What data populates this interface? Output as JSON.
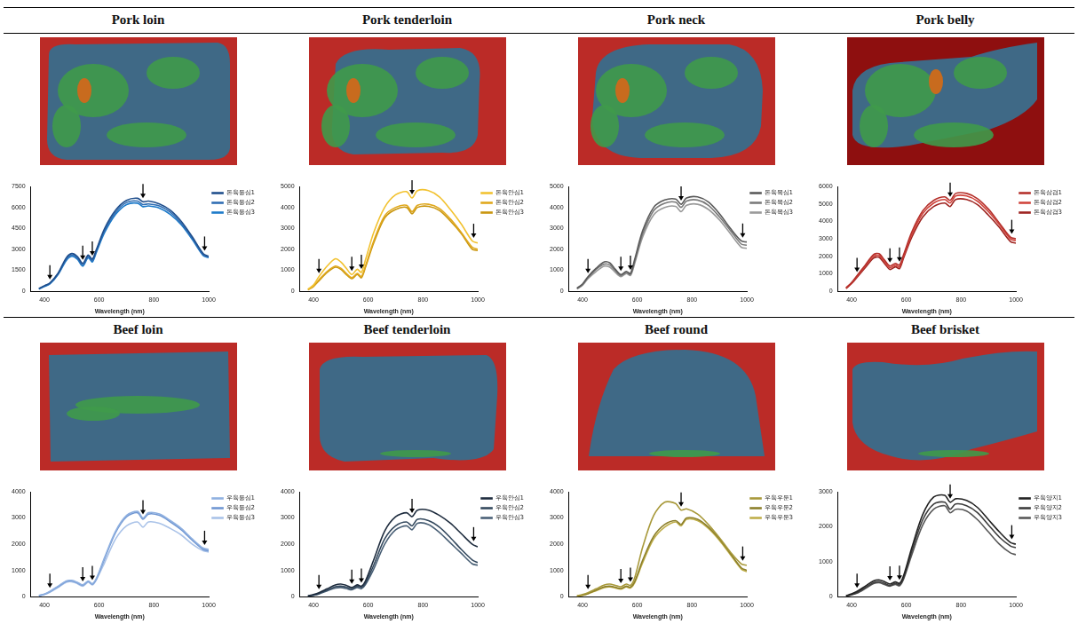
{
  "chart_data": [
    {
      "type": "line",
      "title": "Pork loin",
      "x_label": "Wavelength (nm)",
      "xlim": [
        350,
        1000
      ],
      "xticks": [
        400,
        600,
        800,
        1000
      ],
      "ylim": [
        0,
        7500
      ],
      "yticks": [
        0,
        1500,
        3000,
        4500,
        6000,
        7500
      ],
      "grid": false,
      "legend": "right",
      "arrows_nm": [
        420,
        540,
        575,
        760,
        985
      ],
      "x": [
        380,
        400,
        420,
        450,
        480,
        500,
        520,
        540,
        560,
        575,
        590,
        620,
        660,
        700,
        740,
        760,
        780,
        820,
        860,
        900,
        940,
        980,
        1000
      ],
      "series": [
        {
          "name": "돈육등심1",
          "color": "#1f4e8c",
          "values": [
            200,
            400,
            600,
            1300,
            2400,
            2700,
            2500,
            2000,
            2600,
            2300,
            3000,
            4500,
            5800,
            6500,
            6650,
            6400,
            6450,
            6250,
            5800,
            5000,
            3900,
            2700,
            2500
          ]
        },
        {
          "name": "돈육등심2",
          "color": "#2f6db3",
          "values": [
            180,
            380,
            560,
            1250,
            2300,
            2600,
            2400,
            1900,
            2500,
            2200,
            2900,
            4350,
            5650,
            6350,
            6450,
            6200,
            6250,
            6100,
            5650,
            4850,
            3800,
            2600,
            2450
          ]
        },
        {
          "name": "돈육등심3",
          "color": "#1c7ac9",
          "values": [
            160,
            350,
            520,
            1200,
            2200,
            2500,
            2300,
            1800,
            2400,
            2100,
            2800,
            4200,
            5500,
            6200,
            6300,
            6050,
            6100,
            5950,
            5500,
            4750,
            3700,
            2550,
            2400
          ]
        }
      ]
    },
    {
      "type": "line",
      "title": "Pork tenderloin",
      "x_label": "Wavelength (nm)",
      "xlim": [
        350,
        1000
      ],
      "xticks": [
        400,
        600,
        800,
        1000
      ],
      "ylim": [
        0,
        5000
      ],
      "yticks": [
        0,
        1000,
        2000,
        3000,
        4000,
        5000
      ],
      "grid": false,
      "legend": "right",
      "arrows_nm": [
        420,
        540,
        575,
        760,
        985
      ],
      "x": [
        380,
        400,
        420,
        450,
        480,
        500,
        520,
        540,
        560,
        575,
        590,
        620,
        660,
        700,
        740,
        760,
        780,
        820,
        860,
        900,
        940,
        980,
        1000
      ],
      "series": [
        {
          "name": "돈육안심1",
          "color": "#f2c230",
          "values": [
            100,
            300,
            700,
            1200,
            1550,
            1400,
            1100,
            800,
            1050,
            900,
            1500,
            2800,
            4000,
            4600,
            4750,
            4450,
            4800,
            4800,
            4500,
            3900,
            3200,
            2400,
            2300
          ]
        },
        {
          "name": "돈육안심2",
          "color": "#e0a81c",
          "values": [
            80,
            250,
            550,
            950,
            1200,
            1100,
            850,
            650,
            850,
            700,
            1200,
            2400,
            3600,
            4000,
            4100,
            3800,
            4100,
            4150,
            3950,
            3450,
            2800,
            2100,
            2000
          ]
        },
        {
          "name": "돈육안심3",
          "color": "#c9960f",
          "values": [
            70,
            230,
            500,
            900,
            1150,
            1050,
            800,
            600,
            800,
            650,
            1150,
            2300,
            3500,
            3900,
            4000,
            3700,
            4000,
            4050,
            3850,
            3350,
            2750,
            2000,
            1950
          ]
        }
      ]
    },
    {
      "type": "line",
      "title": "Pork neck",
      "x_label": "Wavelength (nm)",
      "xlim": [
        350,
        1000
      ],
      "xticks": [
        400,
        600,
        800,
        1000
      ],
      "ylim": [
        0,
        5000
      ],
      "yticks": [
        0,
        1000,
        2000,
        3000,
        4000,
        5000
      ],
      "grid": false,
      "legend": "right",
      "arrows_nm": [
        420,
        540,
        575,
        760,
        985
      ],
      "x": [
        380,
        400,
        420,
        450,
        480,
        500,
        520,
        540,
        560,
        575,
        590,
        620,
        660,
        700,
        740,
        760,
        780,
        820,
        860,
        900,
        940,
        980,
        1000
      ],
      "series": [
        {
          "name": "돈육목심1",
          "color": "#5a5a5a",
          "values": [
            150,
            350,
            700,
            1100,
            1400,
            1350,
            1050,
            800,
            950,
            850,
            1500,
            2900,
            4000,
            4350,
            4400,
            4150,
            4450,
            4500,
            4250,
            3700,
            3000,
            2400,
            2350
          ]
        },
        {
          "name": "돈육목심2",
          "color": "#7a7a7a",
          "values": [
            130,
            320,
            650,
            1050,
            1300,
            1250,
            980,
            750,
            900,
            800,
            1400,
            2750,
            3850,
            4200,
            4250,
            4000,
            4300,
            4350,
            4100,
            3550,
            2900,
            2250,
            2200
          ]
        },
        {
          "name": "돈육목심3",
          "color": "#9a9a9a",
          "values": [
            110,
            290,
            600,
            950,
            1200,
            1150,
            900,
            700,
            850,
            750,
            1300,
            2600,
            3650,
            4000,
            4050,
            3800,
            4100,
            4150,
            3900,
            3400,
            2750,
            2100,
            2050
          ]
        }
      ]
    },
    {
      "type": "line",
      "title": "Pork belly",
      "x_label": "Wavelength (nm)",
      "xlim": [
        350,
        1000
      ],
      "xticks": [
        400,
        600,
        800,
        1000
      ],
      "ylim": [
        0,
        6000
      ],
      "yticks": [
        0,
        1000,
        2000,
        3000,
        4000,
        5000,
        6000
      ],
      "grid": false,
      "legend": "right",
      "arrows_nm": [
        420,
        540,
        575,
        760,
        985
      ],
      "x": [
        380,
        400,
        420,
        450,
        480,
        500,
        520,
        540,
        560,
        575,
        590,
        620,
        660,
        700,
        740,
        760,
        780,
        820,
        860,
        900,
        940,
        980,
        1000
      ],
      "series": [
        {
          "name": "돈육삼겹1",
          "color": "#b5302b",
          "values": [
            200,
            500,
            900,
            1500,
            2100,
            2150,
            1800,
            1450,
            1600,
            1500,
            2100,
            3400,
            4600,
            5200,
            5400,
            5200,
            5600,
            5600,
            5300,
            4700,
            3900,
            3100,
            3000
          ]
        },
        {
          "name": "돈육삼겹2",
          "color": "#d0443c",
          "values": [
            180,
            470,
            850,
            1450,
            2000,
            2050,
            1700,
            1350,
            1500,
            1400,
            2000,
            3250,
            4450,
            5050,
            5250,
            5050,
            5450,
            5450,
            5150,
            4550,
            3800,
            3000,
            2900
          ]
        },
        {
          "name": "돈육삼겹3",
          "color": "#9e2420",
          "values": [
            160,
            440,
            800,
            1350,
            1900,
            1950,
            1600,
            1250,
            1400,
            1300,
            1900,
            3100,
            4250,
            4850,
            5050,
            4850,
            5250,
            5250,
            4950,
            4350,
            3650,
            2850,
            2750
          ]
        }
      ]
    },
    {
      "type": "line",
      "title": "Beef loin",
      "x_label": "Wavelength (nm)",
      "xlim": [
        350,
        1000
      ],
      "xticks": [
        400,
        600,
        800,
        1000
      ],
      "ylim": [
        0,
        4000
      ],
      "yticks": [
        0,
        1000,
        2000,
        3000,
        4000
      ],
      "grid": false,
      "legend": "right",
      "arrows_nm": [
        420,
        540,
        575,
        760,
        985
      ],
      "x": [
        380,
        400,
        420,
        450,
        480,
        500,
        520,
        540,
        560,
        575,
        590,
        620,
        660,
        700,
        740,
        760,
        780,
        820,
        860,
        900,
        940,
        980,
        1000
      ],
      "series": [
        {
          "name": "우육등심1",
          "color": "#8fb0e0",
          "values": [
            50,
            100,
            200,
            400,
            600,
            620,
            550,
            450,
            600,
            500,
            700,
            1500,
            2500,
            3100,
            3250,
            3000,
            3200,
            3150,
            2900,
            2600,
            2200,
            1850,
            1800
          ]
        },
        {
          "name": "우육등심2",
          "color": "#6f96d2",
          "values": [
            40,
            90,
            190,
            380,
            580,
            600,
            530,
            430,
            580,
            480,
            680,
            1450,
            2450,
            3050,
            3200,
            2950,
            3150,
            3100,
            2850,
            2550,
            2150,
            1800,
            1750
          ]
        },
        {
          "name": "우육등심3",
          "color": "#a9c2e8",
          "values": [
            30,
            80,
            170,
            350,
            550,
            570,
            500,
            400,
            550,
            450,
            650,
            1300,
            2200,
            2700,
            2850,
            2650,
            2850,
            2800,
            2600,
            2350,
            2000,
            1750,
            1700
          ]
        }
      ]
    },
    {
      "type": "line",
      "title": "Beef tenderloin",
      "x_label": "Wavelength (nm)",
      "xlim": [
        350,
        1000
      ],
      "xticks": [
        400,
        600,
        800,
        1000
      ],
      "ylim": [
        0,
        4000
      ],
      "yticks": [
        0,
        1000,
        2000,
        3000,
        4000
      ],
      "grid": false,
      "legend": "right",
      "arrows_nm": [
        420,
        540,
        575,
        760,
        985
      ],
      "x": [
        380,
        400,
        420,
        450,
        480,
        500,
        520,
        540,
        560,
        575,
        590,
        620,
        660,
        700,
        740,
        760,
        780,
        820,
        860,
        900,
        940,
        980,
        1000
      ],
      "series": [
        {
          "name": "우육안심1",
          "color": "#1e2c3e",
          "values": [
            30,
            80,
            150,
            300,
            450,
            480,
            430,
            350,
            450,
            400,
            600,
            1400,
            2500,
            3050,
            3200,
            3050,
            3300,
            3300,
            3100,
            2800,
            2400,
            2000,
            1900
          ]
        },
        {
          "name": "우육안심2",
          "color": "#34495e",
          "values": [
            20,
            60,
            120,
            250,
            380,
            400,
            360,
            300,
            400,
            350,
            520,
            1200,
            2200,
            2700,
            2850,
            2700,
            2950,
            2900,
            2650,
            2250,
            1800,
            1400,
            1300
          ]
        },
        {
          "name": "우육안심3",
          "color": "#4a6076",
          "values": [
            20,
            50,
            100,
            220,
            330,
            350,
            310,
            260,
            350,
            300,
            460,
            1050,
            2000,
            2550,
            2700,
            2550,
            2800,
            2750,
            2450,
            2050,
            1650,
            1250,
            1200
          ]
        }
      ]
    },
    {
      "type": "line",
      "title": "Beef round",
      "x_label": "Wavelength (nm)",
      "xlim": [
        350,
        1000
      ],
      "xticks": [
        400,
        600,
        800,
        1000
      ],
      "ylim": [
        0,
        4000
      ],
      "yticks": [
        0,
        1000,
        2000,
        3000,
        4000
      ],
      "grid": false,
      "legend": "right",
      "arrows_nm": [
        420,
        540,
        575,
        760,
        985
      ],
      "x": [
        380,
        400,
        420,
        450,
        480,
        500,
        520,
        540,
        560,
        575,
        590,
        620,
        660,
        700,
        740,
        760,
        780,
        820,
        860,
        900,
        940,
        980,
        1000
      ],
      "series": [
        {
          "name": "우육우둔1",
          "color": "#a8993a",
          "values": [
            30,
            80,
            150,
            300,
            450,
            480,
            430,
            380,
            480,
            430,
            700,
            1900,
            3100,
            3600,
            3550,
            3300,
            3350,
            3150,
            2750,
            2250,
            1700,
            1250,
            1200
          ]
        },
        {
          "name": "우육우둔2",
          "color": "#8c7f2a",
          "values": [
            20,
            60,
            120,
            250,
            380,
            400,
            360,
            310,
            400,
            360,
            560,
            1400,
            2300,
            2750,
            2900,
            2750,
            3000,
            2950,
            2650,
            2200,
            1650,
            1100,
            1000
          ]
        },
        {
          "name": "우육우둔3",
          "color": "#bfae4a",
          "values": [
            20,
            50,
            110,
            230,
            350,
            370,
            330,
            290,
            370,
            330,
            520,
            1300,
            2200,
            2650,
            2850,
            2700,
            2950,
            2900,
            2600,
            2150,
            1600,
            1050,
            950
          ]
        }
      ]
    },
    {
      "type": "line",
      "title": "Beef brisket",
      "x_label": "Wavelength (nm)",
      "xlim": [
        350,
        1000
      ],
      "xticks": [
        400,
        600,
        800,
        1000
      ],
      "ylim": [
        0,
        3000
      ],
      "yticks": [
        0,
        1000,
        2000,
        3000
      ],
      "grid": false,
      "legend": "right",
      "arrows_nm": [
        420,
        540,
        575,
        760,
        985
      ],
      "x": [
        380,
        400,
        420,
        450,
        480,
        500,
        520,
        540,
        560,
        575,
        590,
        620,
        660,
        700,
        740,
        760,
        780,
        820,
        860,
        900,
        940,
        980,
        1000
      ],
      "series": [
        {
          "name": "우육양지1",
          "color": "#222222",
          "values": [
            30,
            80,
            150,
            300,
            450,
            480,
            430,
            360,
            420,
            380,
            600,
            1400,
            2350,
            2850,
            2900,
            2700,
            2800,
            2750,
            2550,
            2200,
            1850,
            1550,
            1500
          ]
        },
        {
          "name": "우육양지2",
          "color": "#3d3d3d",
          "values": [
            20,
            60,
            120,
            260,
            400,
            430,
            380,
            320,
            380,
            340,
            540,
            1300,
            2200,
            2650,
            2700,
            2500,
            2650,
            2600,
            2400,
            2050,
            1700,
            1450,
            1400
          ]
        },
        {
          "name": "우육양지3",
          "color": "#575757",
          "values": [
            15,
            50,
            100,
            230,
            370,
            400,
            350,
            300,
            350,
            310,
            500,
            1200,
            2050,
            2500,
            2600,
            2400,
            2500,
            2450,
            2200,
            1850,
            1500,
            1250,
            1200
          ]
        }
      ]
    }
  ]
}
